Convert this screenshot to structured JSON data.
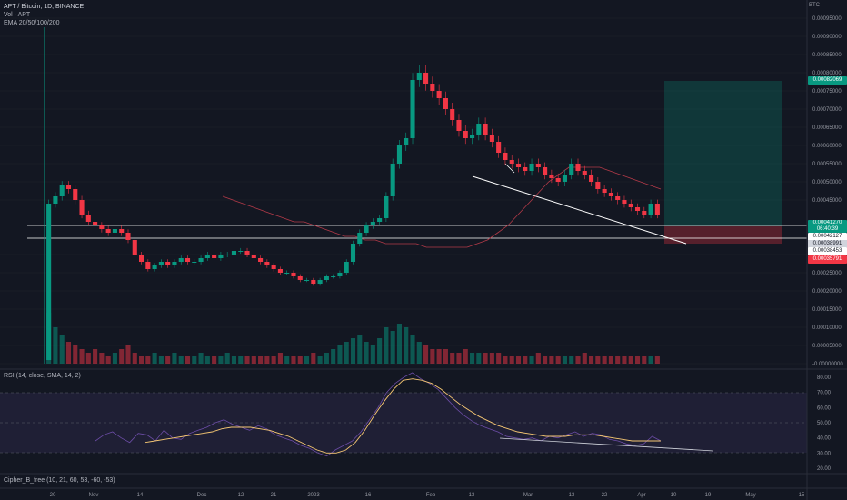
{
  "legend": {
    "title": "APT / Bitcoin, 1D, BINANCE",
    "volume": "Vol · APT",
    "ema": "EMA 20/50/100/200",
    "rsi": "RSI (14, close, SMA, 14, 2)",
    "cipher": "Cipher_B_free (10, 21, 60, 53, -60, -53)"
  },
  "price_axis": {
    "currency": "BTC",
    "ticks": [
      "0.00095000",
      "0.00090000",
      "0.00085000",
      "0.00080000",
      "0.00075000",
      "0.00070000",
      "0.00065000",
      "0.00060000",
      "0.00055000",
      "0.00050000",
      "0.00045000",
      "0.00030000",
      "0.00025000",
      "0.00020000",
      "0.00015000",
      "0.00010000",
      "0.00005000",
      "-0.00000000"
    ]
  },
  "badges": [
    {
      "text": "0.00082069",
      "color": "#089981"
    },
    {
      "text": "0.00041270",
      "sub": "06:40:39",
      "color": "#089981"
    },
    {
      "text": "0.00042127",
      "color": "#ffffff",
      "text_color": "#131722"
    },
    {
      "text": "0.00038991",
      "color": "#d1d4dc",
      "text_color": "#131722"
    },
    {
      "text": "0.00038453",
      "color": "#ffffff",
      "text_color": "#131722"
    },
    {
      "text": "0.00035791",
      "color": "#f23645"
    }
  ],
  "rsi_axis": {
    "ticks": [
      "80.00",
      "70.00",
      "60.00",
      "50.00",
      "40.00",
      "30.00",
      "20.00"
    ]
  },
  "date_axis": {
    "ticks": [
      "20",
      "Nov",
      "14",
      "Dec",
      "12",
      "21",
      "2023",
      "16",
      "Feb",
      "13",
      "Mar",
      "13",
      "22",
      "Apr",
      "10",
      "19",
      "May",
      "15"
    ]
  },
  "colors": {
    "up": "#089981",
    "down": "#f23645",
    "ema": "#b23a48",
    "rsi": "#7e57c2",
    "rsi_ma": "#f7c873"
  },
  "chart_data": {
    "type": "candlestick",
    "price_range": [
      0.0,
      0.00098
    ],
    "rsi_range": [
      20,
      80
    ],
    "closes": [
      0.00044,
      0.00046,
      0.00049,
      0.00048,
      0.00045,
      0.00041,
      0.00039,
      0.00038,
      0.00037,
      0.00036,
      0.00037,
      0.00036,
      0.00034,
      0.0003,
      0.00028,
      0.00026,
      0.00027,
      0.00028,
      0.00027,
      0.00028,
      0.00029,
      0.00028,
      0.00028,
      0.00029,
      0.0003,
      0.00029,
      0.0003,
      0.0003,
      0.00031,
      0.00031,
      0.0003,
      0.00029,
      0.00028,
      0.00027,
      0.00026,
      0.00025,
      0.00025,
      0.00024,
      0.00023,
      0.00023,
      0.00022,
      0.00023,
      0.00024,
      0.00024,
      0.00025,
      0.00028,
      0.00033,
      0.00036,
      0.00038,
      0.00039,
      0.0004,
      0.00046,
      0.00055,
      0.0006,
      0.00062,
      0.00078,
      0.0008,
      0.00077,
      0.00075,
      0.00073,
      0.0007,
      0.00067,
      0.00064,
      0.00062,
      0.00063,
      0.00066,
      0.00063,
      0.00061,
      0.00058,
      0.00056,
      0.00055,
      0.00054,
      0.00053,
      0.00055,
      0.00054,
      0.00052,
      0.00051,
      0.0005,
      0.00052,
      0.00055,
      0.00053,
      0.00052,
      0.0005,
      0.00048,
      0.00047,
      0.00046,
      0.00045,
      0.00044,
      0.00043,
      0.00042,
      0.00041,
      0.00044,
      0.00041
    ],
    "ema": [
      0.00046,
      0.00045,
      0.00044,
      0.00043,
      0.00042,
      0.00041,
      0.0004,
      0.00039,
      0.00039,
      0.00038,
      0.00037,
      0.00036,
      0.00035,
      0.00035,
      0.00034,
      0.00034,
      0.00033,
      0.00033,
      0.00033,
      0.00033,
      0.00032,
      0.00032,
      0.00032,
      0.00032,
      0.00032,
      0.00033,
      0.00034,
      0.00036,
      0.00038,
      0.00041,
      0.00044,
      0.00047,
      0.0005,
      0.00052,
      0.00054,
      0.00054,
      0.00054,
      0.00054,
      0.00053,
      0.00052,
      0.00051,
      0.0005,
      0.00049,
      0.00048
    ],
    "volume": [
      0.00014,
      0.0001,
      8e-05,
      6e-05,
      5e-05,
      4e-05,
      3e-05,
      4e-05,
      3e-05,
      2e-05,
      3e-05,
      4e-05,
      5e-05,
      3e-05,
      2e-05,
      2e-05,
      3e-05,
      2e-05,
      2e-05,
      3e-05,
      2e-05,
      2e-05,
      2e-05,
      3e-05,
      2e-05,
      2e-05,
      2e-05,
      3e-05,
      2e-05,
      2e-05,
      2e-05,
      2e-05,
      2e-05,
      2e-05,
      2e-05,
      3e-05,
      2e-05,
      2e-05,
      2e-05,
      2e-05,
      3e-05,
      2e-05,
      3e-05,
      4e-05,
      5e-05,
      6e-05,
      7e-05,
      8e-05,
      6e-05,
      5e-05,
      7e-05,
      0.0001,
      9e-05,
      0.00011,
      0.0001,
      8e-05,
      6e-05,
      5e-05,
      4e-05,
      4e-05,
      4e-05,
      3e-05,
      3e-05,
      4e-05,
      3e-05,
      3e-05,
      3e-05,
      3e-05,
      3e-05,
      2e-05,
      2e-05,
      2e-05,
      2e-05,
      2e-05,
      3e-05,
      2e-05,
      2e-05,
      2e-05,
      2e-05,
      2e-05,
      2e-05,
      3e-05,
      2e-05,
      2e-05,
      2e-05,
      2e-05,
      2e-05,
      2e-05,
      2e-05,
      2e-05,
      2e-05,
      2e-05,
      2e-05
    ],
    "rsi": [
      38,
      42,
      44,
      40,
      37,
      43,
      42,
      38,
      45,
      40,
      39,
      43,
      45,
      47,
      50,
      52,
      49,
      47,
      45,
      48,
      46,
      42,
      40,
      38,
      35,
      33,
      30,
      28,
      32,
      35,
      38,
      44,
      52,
      60,
      70,
      76,
      80,
      83,
      79,
      76,
      72,
      66,
      60,
      55,
      51,
      48,
      46,
      44,
      41,
      40,
      39,
      40,
      38,
      41,
      40,
      42,
      44,
      41,
      43,
      42,
      39,
      38,
      36,
      35,
      36,
      41,
      38
    ],
    "rsi_ma": [
      37,
      38,
      39,
      40,
      41,
      42,
      43,
      44,
      46,
      47,
      47,
      47,
      46,
      45,
      43,
      41,
      38,
      35,
      32,
      30,
      30,
      32,
      37,
      45,
      55,
      64,
      72,
      78,
      79,
      78,
      76,
      72,
      67,
      62,
      58,
      54,
      51,
      48,
      46,
      44,
      43,
      42,
      41,
      41,
      41,
      42,
      42,
      42,
      41,
      40,
      39,
      38,
      38,
      38,
      38
    ]
  }
}
